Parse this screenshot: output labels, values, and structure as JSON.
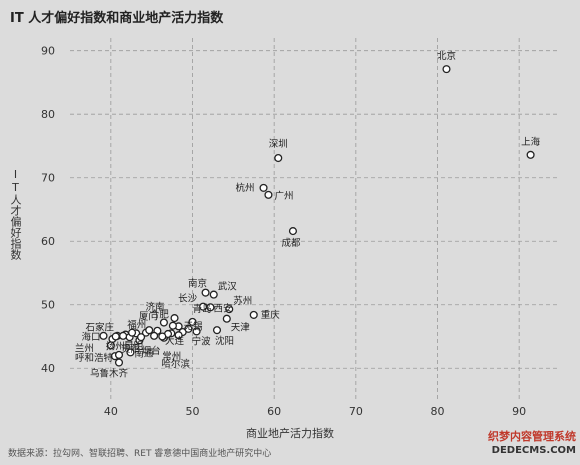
{
  "chart_data": {
    "type": "scatter",
    "title": "IT 人才偏好指数和商业地产活力指数",
    "xlabel": "商业地产活力指数",
    "ylabel": "IT人才偏好指数",
    "xlim": [
      35,
      95
    ],
    "ylim": [
      35,
      92
    ],
    "xticks": [
      40,
      50,
      60,
      70,
      80,
      90
    ],
    "yticks": [
      40,
      50,
      60,
      70,
      80,
      90
    ],
    "grid": true,
    "points": [
      {
        "label": "北京",
        "x": 81.1,
        "y": 87.1
      },
      {
        "label": "上海",
        "x": 91.4,
        "y": 73.6
      },
      {
        "label": "深圳",
        "x": 60.5,
        "y": 73.1
      },
      {
        "label": "杭州",
        "x": 58.7,
        "y": 68.4
      },
      {
        "label": "广州",
        "x": 59.3,
        "y": 67.3
      },
      {
        "label": "成都",
        "x": 62.3,
        "y": 61.6
      },
      {
        "label": "南京",
        "x": 51.6,
        "y": 51.9
      },
      {
        "label": "武汉",
        "x": 52.6,
        "y": 51.6
      },
      {
        "label": "长沙",
        "x": 51.3,
        "y": 49.7
      },
      {
        "label": "西安",
        "x": 52.2,
        "y": 49.6
      },
      {
        "label": "苏州",
        "x": 54.5,
        "y": 49.3
      },
      {
        "label": "重庆",
        "x": 57.5,
        "y": 48.4
      },
      {
        "label": "天津",
        "x": 54.2,
        "y": 47.8
      },
      {
        "label": "济南",
        "x": 47.8,
        "y": 47.9
      },
      {
        "label": "青岛",
        "x": 50.0,
        "y": 47.3
      },
      {
        "label": "无锡",
        "x": 48.3,
        "y": 46.6
      },
      {
        "label": "厦门",
        "x": 46.5,
        "y": 47.2
      },
      {
        "label": "合肥",
        "x": 47.6,
        "y": 46.7
      },
      {
        "label": "福州",
        "x": 44.7,
        "y": 46.0
      },
      {
        "label": "石家庄",
        "x": 42.6,
        "y": 45.6
      },
      {
        "label": "海口",
        "x": 39.1,
        "y": 45.1
      },
      {
        "label": "扬州",
        "x": 40.6,
        "y": 45.0
      },
      {
        "label": "大连",
        "x": 47.0,
        "y": 45.4
      },
      {
        "label": "宁波",
        "x": 50.5,
        "y": 45.8
      },
      {
        "label": "沈阳",
        "x": 53.0,
        "y": 46.0
      },
      {
        "label": "昆明",
        "x": 41.5,
        "y": 45.1
      },
      {
        "label": "贵阳",
        "x": 43.7,
        "y": 44.9
      },
      {
        "label": "烟台",
        "x": 45.3,
        "y": 45.1
      },
      {
        "label": "常州",
        "x": 46.3,
        "y": 45.0
      },
      {
        "label": "哈尔滨",
        "x": 48.3,
        "y": 45.2
      },
      {
        "label": "兰州",
        "x": 40.0,
        "y": 43.6
      },
      {
        "label": "南通",
        "x": 42.4,
        "y": 42.5
      },
      {
        "label": "呼和浩特",
        "x": 41.0,
        "y": 42.1
      },
      {
        "label": "乌鲁木齐",
        "x": 41.0,
        "y": 40.9
      }
    ],
    "extra_markers": [
      {
        "x": 40.8,
        "y": 45.1
      },
      {
        "x": 41.8,
        "y": 45.3
      },
      {
        "x": 42.3,
        "y": 44.9
      },
      {
        "x": 43.1,
        "y": 45.5
      },
      {
        "x": 44.3,
        "y": 45.6
      },
      {
        "x": 46.5,
        "y": 44.8
      },
      {
        "x": 47.4,
        "y": 45.5
      },
      {
        "x": 48.8,
        "y": 45.7
      },
      {
        "x": 49.5,
        "y": 46.2
      },
      {
        "x": 40.2,
        "y": 44.6
      },
      {
        "x": 45.7,
        "y": 45.9
      },
      {
        "x": 43.5,
        "y": 44.4
      },
      {
        "x": 40.5,
        "y": 41.9
      }
    ]
  },
  "source": "数据来源：拉勾网、智联招聘、RET 睿意德中国商业地产研究中心",
  "watermark": {
    "line1": "织梦内容管理系统",
    "line2": "DEDECMS.COM"
  },
  "colors": {
    "background": "#dcdcdc",
    "grid": "#9a9a9a",
    "marker_edge": "#222222",
    "marker_fill": "#ffffff",
    "text": "#333333"
  }
}
